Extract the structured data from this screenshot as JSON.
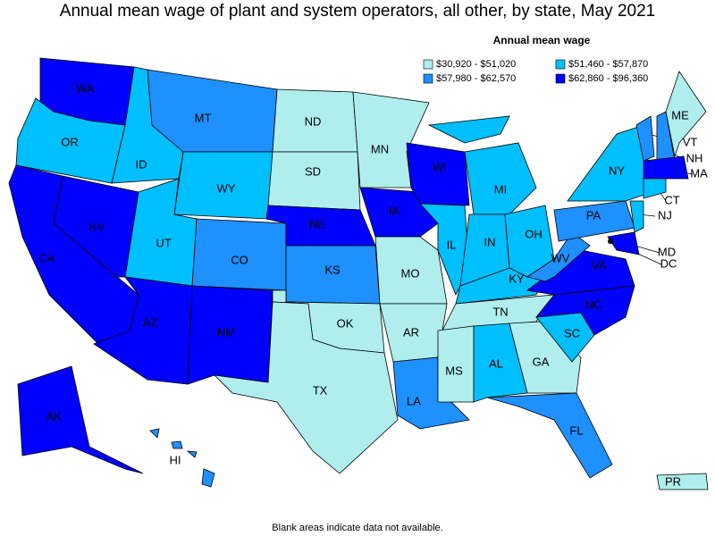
{
  "title": "Annual mean wage of plant and system operators, all other, by state, May 2021",
  "legend_title": "Annual mean wage",
  "legend": [
    {
      "label": "$30,920 - $51,020",
      "color": "#b0eeee"
    },
    {
      "label": "$51,460 - $57,870",
      "color": "#00bfff"
    },
    {
      "label": "$57,980 - $62,570",
      "color": "#1e90ff"
    },
    {
      "label": "$62,860 - $96,360",
      "color": "#0000ff"
    }
  ],
  "states": [
    {
      "label": "WA",
      "color": "#0000ff"
    },
    {
      "label": "OR",
      "color": "#00bfff"
    },
    {
      "label": "CA",
      "color": "#0000ff"
    },
    {
      "label": "NV",
      "color": "#0000ff"
    },
    {
      "label": "ID",
      "color": "#00bfff"
    },
    {
      "label": "MT",
      "color": "#1e90ff"
    },
    {
      "label": "WY",
      "color": "#00bfff"
    },
    {
      "label": "UT",
      "color": "#00bfff"
    },
    {
      "label": "AZ",
      "color": "#0000ff"
    },
    {
      "label": "CO",
      "color": "#1e90ff"
    },
    {
      "label": "NM",
      "color": "#0000ff"
    },
    {
      "label": "ND",
      "color": "#b0eeee"
    },
    {
      "label": "SD",
      "color": "#b0eeee"
    },
    {
      "label": "NE",
      "color": "#0000ff"
    },
    {
      "label": "KS",
      "color": "#1e90ff"
    },
    {
      "label": "OK",
      "color": "#b0eeee"
    },
    {
      "label": "TX",
      "color": "#b0eeee"
    },
    {
      "label": "MN",
      "color": "#b0eeee"
    },
    {
      "label": "IA",
      "color": "#0000ff"
    },
    {
      "label": "MO",
      "color": "#b0eeee"
    },
    {
      "label": "AR",
      "color": "#b0eeee"
    },
    {
      "label": "LA",
      "color": "#1e90ff"
    },
    {
      "label": "WI",
      "color": "#0000ff"
    },
    {
      "label": "IL",
      "color": "#00bfff"
    },
    {
      "label": "MI",
      "color": "#00bfff"
    },
    {
      "label": "IN",
      "color": "#00bfff"
    },
    {
      "label": "OH",
      "color": "#00bfff"
    },
    {
      "label": "KY",
      "color": "#00bfff"
    },
    {
      "label": "TN",
      "color": "#b0eeee"
    },
    {
      "label": "MS",
      "color": "#b0eeee"
    },
    {
      "label": "AL",
      "color": "#00bfff"
    },
    {
      "label": "GA",
      "color": "#b0eeee"
    },
    {
      "label": "FL",
      "color": "#1e90ff"
    },
    {
      "label": "SC",
      "color": "#00bfff"
    },
    {
      "label": "NC",
      "color": "#0000ff"
    },
    {
      "label": "VA",
      "color": "#0000ff"
    },
    {
      "label": "WV",
      "color": "#1e90ff"
    },
    {
      "label": "PA",
      "color": "#1e90ff"
    },
    {
      "label": "NY",
      "color": "#00bfff"
    },
    {
      "label": "VT",
      "color": "#1e90ff"
    },
    {
      "label": "NH",
      "color": "#1e90ff"
    },
    {
      "label": "ME",
      "color": "#b0eeee"
    },
    {
      "label": "MA",
      "color": "#0000ff"
    },
    {
      "label": "CT",
      "color": "#00bfff"
    },
    {
      "label": "NJ",
      "color": "#00bfff"
    },
    {
      "label": "MD",
      "color": "#0000ff"
    },
    {
      "label": "DC",
      "color": "#0000ff"
    },
    {
      "label": "AK",
      "color": "#0000ff"
    },
    {
      "label": "HI",
      "color": "#1e90ff"
    },
    {
      "label": "PR",
      "color": "#b0eeee"
    }
  ],
  "note": "Blank areas indicate data not available."
}
